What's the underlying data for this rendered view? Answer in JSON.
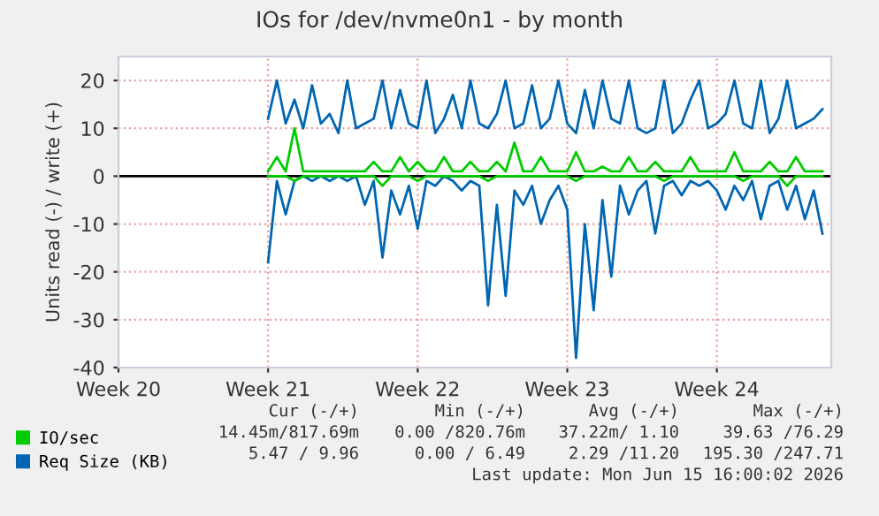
{
  "chart_data": {
    "type": "line",
    "title": "IOs for /dev/nvme0n1 - by month",
    "ylabel": "Units read (-) / write (+)",
    "categories": [
      "Week 20",
      null,
      null,
      null,
      null,
      null,
      null,
      null,
      null,
      null,
      null,
      null,
      null,
      null,
      null,
      null,
      null,
      "Week 21",
      null,
      null,
      null,
      null,
      null,
      null,
      null,
      null,
      null,
      null,
      null,
      null,
      null,
      null,
      null,
      null,
      "Week 22",
      null,
      null,
      null,
      null,
      null,
      null,
      null,
      null,
      null,
      null,
      null,
      null,
      null,
      null,
      null,
      null,
      "Week 23",
      null,
      null,
      null,
      null,
      null,
      null,
      null,
      null,
      null,
      null,
      null,
      null,
      null,
      null,
      null,
      null,
      "Week 24",
      null,
      null,
      null,
      null,
      null,
      null,
      null,
      null,
      null,
      null,
      null,
      null,
      null
    ],
    "series": [
      {
        "name": "IO/sec",
        "color": "#00cc00",
        "values": [
          null,
          null,
          null,
          null,
          null,
          null,
          null,
          null,
          null,
          null,
          null,
          null,
          null,
          null,
          null,
          null,
          null,
          1,
          4,
          1,
          10,
          1,
          1,
          1,
          1,
          1,
          1,
          1,
          1,
          3,
          1,
          1,
          4,
          1,
          3,
          1,
          1,
          4,
          1,
          1,
          3,
          1,
          1,
          3,
          1,
          7,
          1,
          1,
          4,
          1,
          1,
          1,
          5,
          1,
          1,
          2,
          1,
          1,
          4,
          1,
          1,
          3,
          1,
          1,
          1,
          4,
          1,
          1,
          1,
          1,
          5,
          1,
          1,
          1,
          3,
          1,
          1,
          4,
          1,
          1,
          1,
          null
        ]
      },
      {
        "color": "#00cc00",
        "values": [
          null,
          null,
          null,
          null,
          null,
          null,
          null,
          null,
          null,
          null,
          null,
          null,
          null,
          null,
          null,
          null,
          null,
          0,
          0,
          0,
          -1,
          0,
          0,
          0,
          0,
          0,
          0,
          0,
          0,
          0,
          -2,
          0,
          0,
          0,
          -1,
          0,
          0,
          0,
          0,
          0,
          0,
          0,
          -1,
          0,
          0,
          0,
          0,
          0,
          0,
          0,
          0,
          0,
          -1,
          0,
          0,
          0,
          0,
          0,
          0,
          0,
          0,
          0,
          -1,
          0,
          0,
          0,
          0,
          0,
          0,
          0,
          0,
          -1,
          0,
          0,
          0,
          0,
          -2,
          0,
          0,
          0,
          0,
          null
        ]
      },
      {
        "name": "Req Size (KB)",
        "color": "#0066b3",
        "values": [
          null,
          null,
          null,
          null,
          null,
          null,
          null,
          null,
          null,
          null,
          null,
          null,
          null,
          null,
          null,
          null,
          null,
          12,
          20,
          11,
          16,
          10,
          19,
          11,
          13,
          9,
          20,
          10,
          11,
          12,
          20,
          10,
          18,
          11,
          10,
          20,
          9,
          12,
          17,
          10,
          20,
          11,
          10,
          13,
          20,
          10,
          11,
          19,
          10,
          12,
          20,
          11,
          9,
          18,
          10,
          20,
          12,
          11,
          20,
          10,
          9,
          10,
          20,
          9,
          11,
          16,
          20,
          10,
          11,
          13,
          20,
          11,
          10,
          20,
          9,
          12,
          20,
          10,
          11,
          12,
          14,
          null
        ]
      },
      {
        "color": "#0066b3",
        "values": [
          null,
          null,
          null,
          null,
          null,
          null,
          null,
          null,
          null,
          null,
          null,
          null,
          null,
          null,
          null,
          null,
          null,
          -18,
          -1,
          -8,
          -1,
          0,
          -1,
          0,
          -1,
          0,
          -1,
          0,
          -6,
          -1,
          -17,
          -3,
          -8,
          -2,
          -11,
          -1,
          -2,
          0,
          -1,
          -3,
          -1,
          -2,
          -27,
          -6,
          -25,
          -3,
          -6,
          -2,
          -10,
          -5,
          -2,
          -7,
          -38,
          -10,
          -28,
          -5,
          -21,
          -2,
          -8,
          -3,
          -1,
          -12,
          -2,
          -1,
          -4,
          -1,
          -2,
          -1,
          -3,
          -7,
          -2,
          -5,
          -1,
          -9,
          -2,
          -1,
          -7,
          -2,
          -9,
          -3,
          -12,
          null
        ]
      }
    ],
    "ylim": [
      -40,
      25
    ],
    "yticks": [
      -40,
      -30,
      -20,
      -10,
      0,
      10,
      20
    ],
    "grid": true,
    "legend": "bottom",
    "ref_lines": [
      {
        "axis": "y",
        "value": 0,
        "color": "#000000"
      }
    ],
    "annotations": [
      "Cur (-/+)",
      "Min (-/+)",
      "Avg (-/+)",
      "Max (-/+)",
      "14.45m/817.69m",
      "0.00 /820.76m",
      "37.22m/ 1.10",
      "39.63 /76.29",
      "5.47 / 9.96",
      "0.00 / 6.49",
      "2.29 /11.20",
      "195.30 /247.71",
      "Last update: Mon Jun 15 16:00:02 2026"
    ]
  }
}
